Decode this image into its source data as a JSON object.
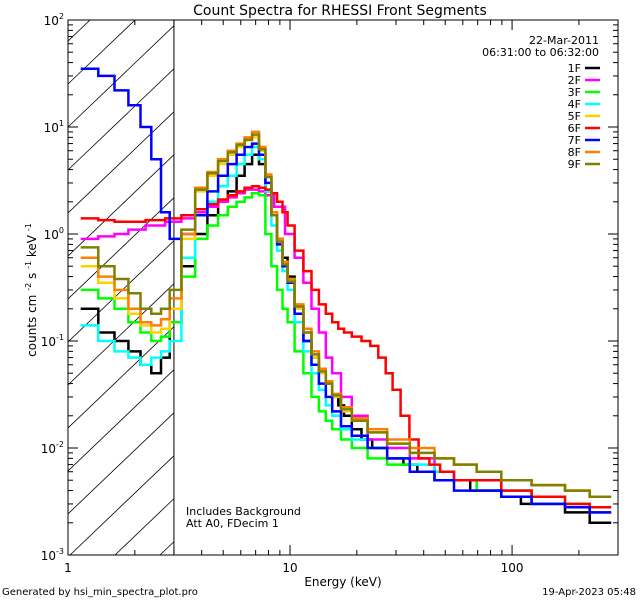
{
  "chart_data": {
    "type": "line",
    "title": "Count Spectra for RHESSI Front Segments",
    "xlabel": "Energy (keV)",
    "ylabel_main": "counts cm",
    "ylabel_exp1": "-2",
    "ylabel_mid": " s",
    "ylabel_exp2": "-1",
    "ylabel_end": " keV",
    "ylabel_exp3": "-1",
    "xscale": "log",
    "yscale": "log",
    "xlim": [
      1,
      300
    ],
    "ylim": [
      0.001,
      100
    ],
    "x_ticks": [
      {
        "value": 1,
        "label": "1"
      },
      {
        "value": 10,
        "label": "10"
      },
      {
        "value": 100,
        "label": "100"
      }
    ],
    "y_ticks": [
      {
        "value": 100,
        "base": "10",
        "exp": "2"
      },
      {
        "value": 10,
        "base": "10",
        "exp": "1"
      },
      {
        "value": 1,
        "base": "10",
        "exp": "0"
      },
      {
        "value": 0.1,
        "base": "10",
        "exp": "-1"
      },
      {
        "value": 0.01,
        "base": "10",
        "exp": "-2"
      },
      {
        "value": 0.001,
        "base": "10",
        "exp": "-3"
      }
    ],
    "date": "22-Mar-2011",
    "time_range": "06:31:00 to 06:32:00",
    "annotations": [
      "Includes Background",
      "Att A0, FDecim 1"
    ],
    "shaded_region_keV": [
      1,
      3
    ],
    "legend_position": "top-right",
    "series": [
      {
        "name": "1F",
        "color": "#000000",
        "x": [
          1.25,
          1.5,
          1.75,
          2,
          2.25,
          2.5,
          2.75,
          3,
          3.5,
          4,
          4.5,
          5,
          5.5,
          6,
          6.5,
          7,
          7.5,
          8,
          8.5,
          9,
          9.5,
          10,
          11,
          12,
          13,
          14,
          15,
          16,
          17,
          18,
          20,
          22,
          25,
          30,
          35,
          40,
          50,
          60,
          70,
          80,
          100,
          120,
          150,
          200,
          250
        ],
        "y": [
          0.2,
          0.12,
          0.1,
          0.08,
          0.06,
          0.05,
          0.07,
          0.15,
          0.5,
          1.0,
          1.5,
          2.0,
          2.5,
          3.5,
          4.5,
          5.5,
          4.5,
          2.5,
          1.5,
          0.9,
          0.6,
          0.4,
          0.2,
          0.1,
          0.07,
          0.05,
          0.04,
          0.03,
          0.025,
          0.02,
          0.015,
          0.012,
          0.01,
          0.008,
          0.007,
          0.006,
          0.005,
          0.005,
          0.004,
          0.004,
          0.0035,
          0.003,
          0.003,
          0.0025,
          0.002
        ]
      },
      {
        "name": "2F",
        "color": "#ff00ff",
        "x": [
          1.25,
          1.5,
          1.75,
          2,
          2.5,
          3,
          3.5,
          4,
          4.5,
          5,
          5.5,
          6,
          6.5,
          7,
          7.5,
          8,
          9,
          10,
          11,
          12,
          13,
          14,
          15,
          16,
          18,
          20,
          25,
          30,
          40,
          50,
          60,
          80,
          100,
          150,
          200,
          250
        ],
        "y": [
          0.9,
          0.95,
          1.0,
          1.1,
          1.2,
          1.3,
          1.4,
          1.6,
          1.8,
          2.0,
          2.2,
          2.4,
          2.6,
          2.6,
          2.5,
          2.3,
          1.8,
          1.0,
          0.6,
          0.35,
          0.2,
          0.12,
          0.07,
          0.05,
          0.03,
          0.02,
          0.012,
          0.01,
          0.008,
          0.006,
          0.005,
          0.004,
          0.004,
          0.003,
          0.003,
          0.0025
        ]
      },
      {
        "name": "3F",
        "color": "#00ff00",
        "x": [
          1.25,
          1.5,
          1.75,
          2,
          2.25,
          2.5,
          2.75,
          3,
          3.5,
          4,
          4.5,
          5,
          5.5,
          6,
          6.5,
          7,
          7.5,
          8,
          8.5,
          9,
          9.5,
          10,
          11,
          12,
          13,
          14,
          15,
          16,
          18,
          20,
          25,
          30,
          40,
          50,
          60,
          80,
          100,
          150,
          200,
          250
        ],
        "y": [
          0.3,
          0.25,
          0.2,
          0.15,
          0.12,
          0.1,
          0.11,
          0.15,
          0.4,
          0.9,
          1.2,
          1.5,
          1.8,
          2.0,
          2.2,
          2.4,
          2.3,
          1.0,
          0.5,
          0.3,
          0.2,
          0.15,
          0.08,
          0.05,
          0.03,
          0.022,
          0.018,
          0.015,
          0.012,
          0.01,
          0.008,
          0.007,
          0.006,
          0.005,
          0.005,
          0.004,
          0.004,
          0.003,
          0.003,
          0.0025
        ]
      },
      {
        "name": "4F",
        "color": "#00ffff",
        "x": [
          1.25,
          1.5,
          1.75,
          2,
          2.25,
          2.5,
          2.75,
          3,
          3.5,
          4,
          4.5,
          5,
          5.5,
          6,
          6.5,
          7,
          7.5,
          8,
          8.5,
          9,
          9.5,
          10,
          11,
          12,
          13,
          14,
          15,
          16,
          18,
          20,
          25,
          30,
          40,
          50,
          60,
          80,
          100,
          150,
          200,
          250
        ],
        "y": [
          0.14,
          0.1,
          0.08,
          0.07,
          0.06,
          0.07,
          0.08,
          0.1,
          0.6,
          1.5,
          2.0,
          2.8,
          3.5,
          4.5,
          5.5,
          6.5,
          5.0,
          2.5,
          1.2,
          0.7,
          0.45,
          0.3,
          0.15,
          0.08,
          0.05,
          0.035,
          0.025,
          0.02,
          0.015,
          0.012,
          0.01,
          0.008,
          0.007,
          0.006,
          0.005,
          0.005,
          0.004,
          0.0035,
          0.003,
          0.0028
        ]
      },
      {
        "name": "5F",
        "color": "#ffd000",
        "x": [
          1.25,
          1.5,
          1.75,
          2,
          2.25,
          2.5,
          2.75,
          3,
          3.5,
          4,
          4.5,
          5,
          5.5,
          6,
          6.5,
          7,
          7.5,
          8,
          8.5,
          9,
          9.5,
          10,
          11,
          12,
          13,
          14,
          15,
          16,
          18,
          20,
          25,
          30,
          40,
          50,
          60,
          80,
          100,
          150,
          200,
          250
        ],
        "y": [
          0.5,
          0.35,
          0.25,
          0.18,
          0.14,
          0.12,
          0.13,
          0.2,
          0.9,
          2.5,
          3.5,
          4.5,
          5.5,
          6.5,
          7.5,
          8.0,
          6.0,
          3.5,
          1.5,
          0.8,
          0.5,
          0.35,
          0.2,
          0.12,
          0.07,
          0.05,
          0.04,
          0.03,
          0.022,
          0.018,
          0.014,
          0.011,
          0.009,
          0.008,
          0.007,
          0.006,
          0.005,
          0.0045,
          0.004,
          0.0035
        ]
      },
      {
        "name": "6F",
        "color": "#ff0000",
        "x": [
          1.25,
          1.5,
          1.75,
          2,
          2.5,
          3,
          3.5,
          4,
          4.5,
          5,
          5.5,
          6,
          6.5,
          7,
          7.5,
          8,
          8.5,
          9,
          9.5,
          10,
          11,
          12,
          13,
          14,
          15,
          16,
          17,
          18,
          20,
          22,
          24,
          26,
          28,
          30,
          33,
          36,
          40,
          45,
          50,
          60,
          80,
          100,
          150,
          200,
          250
        ],
        "y": [
          1.4,
          1.35,
          1.3,
          1.3,
          1.35,
          1.4,
          1.5,
          1.7,
          1.9,
          2.1,
          2.3,
          2.5,
          2.7,
          2.8,
          2.7,
          2.6,
          2.4,
          2.0,
          1.6,
          1.2,
          0.7,
          0.45,
          0.3,
          0.22,
          0.18,
          0.15,
          0.13,
          0.12,
          0.11,
          0.1,
          0.09,
          0.07,
          0.05,
          0.035,
          0.02,
          0.012,
          0.008,
          0.007,
          0.006,
          0.005,
          0.005,
          0.004,
          0.0035,
          0.003,
          0.0028
        ]
      },
      {
        "name": "7F",
        "color": "#0000ff",
        "x": [
          1.25,
          1.5,
          1.75,
          2,
          2.25,
          2.5,
          2.75,
          3,
          3.5,
          4,
          4.5,
          5,
          5.5,
          6,
          6.5,
          7,
          7.5,
          8,
          8.5,
          9,
          9.5,
          10,
          11,
          12,
          13,
          14,
          15,
          16,
          18,
          20,
          25,
          30,
          40,
          50,
          60,
          80,
          100,
          150,
          200,
          250
        ],
        "y": [
          35,
          30,
          22,
          16,
          10,
          5.0,
          1.6,
          0.9,
          1.0,
          1.5,
          2.5,
          3.5,
          4.5,
          5.5,
          6.5,
          7.0,
          5.5,
          3.0,
          1.5,
          0.8,
          0.5,
          0.35,
          0.18,
          0.1,
          0.06,
          0.04,
          0.03,
          0.022,
          0.016,
          0.013,
          0.01,
          0.008,
          0.006,
          0.005,
          0.004,
          0.004,
          0.0035,
          0.003,
          0.0028,
          0.0025
        ]
      },
      {
        "name": "8F",
        "color": "#ff8000",
        "x": [
          1.25,
          1.5,
          1.75,
          2,
          2.25,
          2.5,
          2.75,
          3,
          3.5,
          4,
          4.5,
          5,
          5.5,
          6,
          6.5,
          7,
          7.5,
          8,
          8.5,
          9,
          9.5,
          10,
          11,
          12,
          13,
          14,
          15,
          16,
          18,
          20,
          25,
          30,
          40,
          50,
          60,
          80,
          100,
          150,
          200,
          250
        ],
        "y": [
          0.6,
          0.4,
          0.3,
          0.2,
          0.15,
          0.14,
          0.16,
          0.25,
          1.0,
          2.7,
          3.8,
          5.0,
          6.0,
          7.0,
          8.0,
          9.0,
          6.5,
          3.6,
          1.6,
          0.9,
          0.55,
          0.38,
          0.22,
          0.13,
          0.08,
          0.055,
          0.042,
          0.032,
          0.024,
          0.019,
          0.015,
          0.012,
          0.01,
          0.008,
          0.007,
          0.006,
          0.005,
          0.0045,
          0.004,
          0.0035
        ]
      },
      {
        "name": "9F",
        "color": "#808000",
        "x": [
          1.25,
          1.5,
          1.75,
          2,
          2.25,
          2.5,
          2.75,
          3,
          3.5,
          4,
          4.5,
          5,
          5.5,
          6,
          6.5,
          7,
          7.5,
          8,
          8.5,
          9,
          9.5,
          10,
          11,
          12,
          13,
          14,
          15,
          16,
          18,
          20,
          25,
          30,
          40,
          50,
          60,
          80,
          100,
          150,
          200,
          250
        ],
        "y": [
          0.75,
          0.5,
          0.38,
          0.28,
          0.2,
          0.18,
          0.2,
          0.3,
          1.1,
          2.6,
          3.7,
          4.8,
          5.8,
          6.8,
          7.6,
          8.5,
          6.2,
          3.4,
          1.5,
          0.85,
          0.52,
          0.36,
          0.21,
          0.12,
          0.075,
          0.052,
          0.04,
          0.031,
          0.023,
          0.018,
          0.014,
          0.011,
          0.009,
          0.008,
          0.007,
          0.006,
          0.005,
          0.0045,
          0.004,
          0.0035
        ]
      }
    ]
  },
  "footer": {
    "left": "Generated by hsi_min_spectra_plot.pro",
    "right": "19-Apr-2023 05:48"
  }
}
